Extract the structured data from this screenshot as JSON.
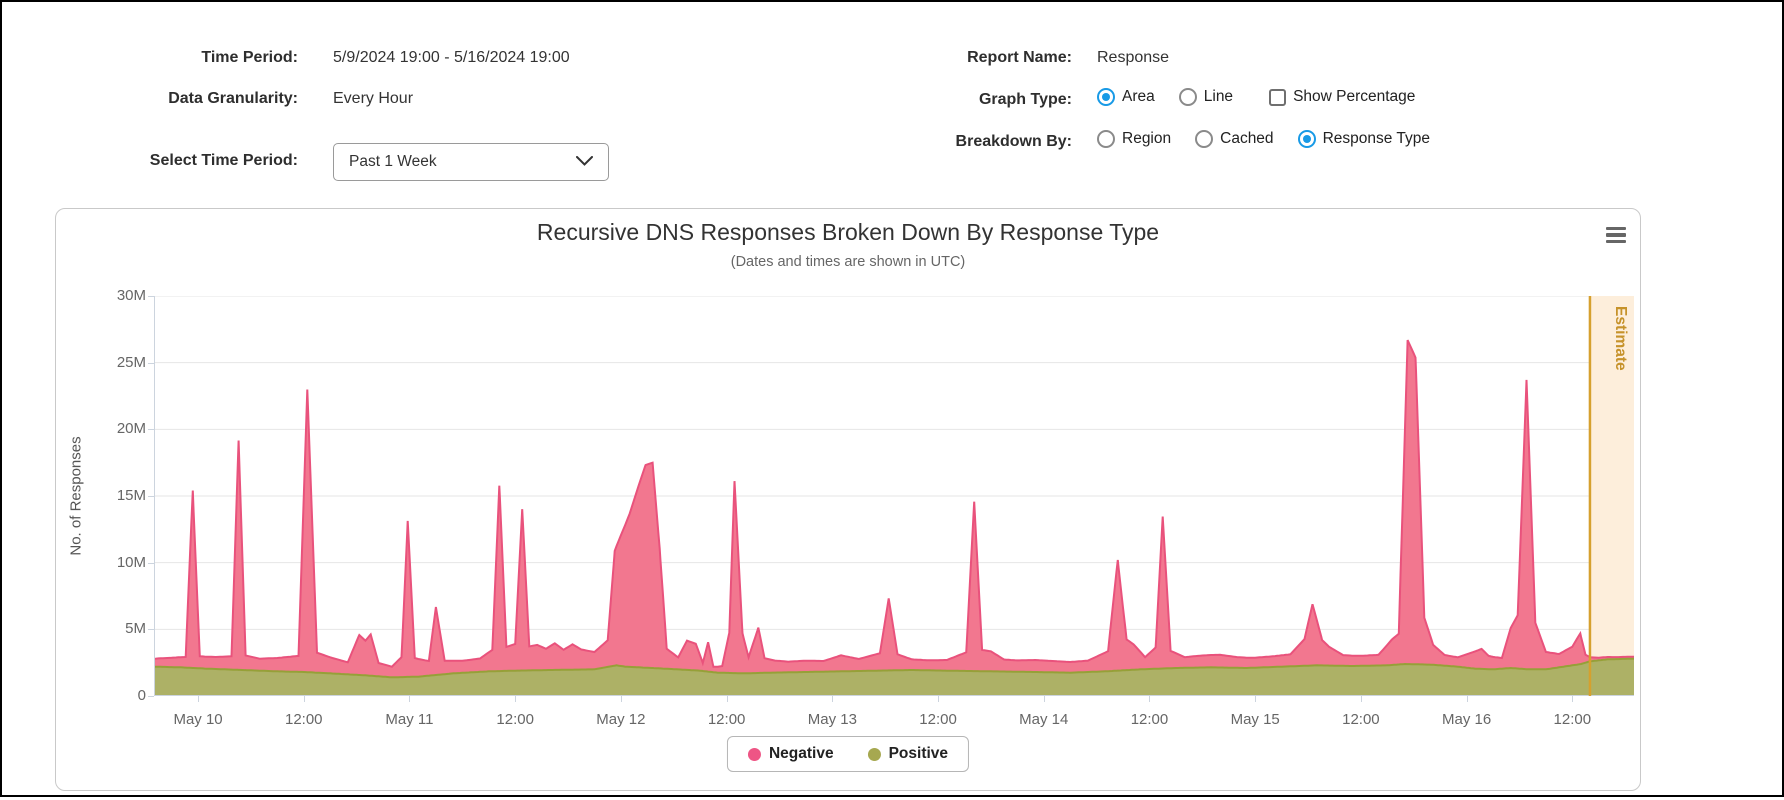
{
  "controls": {
    "time_period_label": "Time Period:",
    "time_period_value": "5/9/2024 19:00 - 5/16/2024 19:00",
    "granularity_label": "Data Granularity:",
    "granularity_value": "Every Hour",
    "select_label": "Select Time Period:",
    "select_value": "Past 1 Week",
    "report_label": "Report Name:",
    "report_value": "Response",
    "graph_type_label": "Graph Type:",
    "graph_options": [
      {
        "label": "Area",
        "selected": true
      },
      {
        "label": "Line",
        "selected": false
      }
    ],
    "show_percentage": {
      "label": "Show Percentage",
      "checked": false
    },
    "breakdown_label": "Breakdown By:",
    "breakdown_options": [
      {
        "label": "Region",
        "selected": false
      },
      {
        "label": "Cached",
        "selected": false
      },
      {
        "label": "Response Type",
        "selected": true
      }
    ]
  },
  "chart": {
    "title": "Recursive DNS Responses Broken Down By Response Type",
    "subtitle": "(Dates and times are shown in UTC)",
    "y_axis_title": "No. of Responses"
  },
  "chart_data": {
    "type": "area",
    "stacked": true,
    "title": "Recursive DNS Responses Broken Down By Response Type",
    "subtitle": "(Dates and times are shown in UTC)",
    "xlabel": "",
    "ylabel": "No. of Responses",
    "x_unit": "hours since 2024-05-09 19:00 UTC",
    "value_unit": "millions of responses",
    "xlim": [
      0,
      168
    ],
    "ylim": [
      0,
      30
    ],
    "grid": true,
    "legend_position": "bottom",
    "y_ticks": [
      [
        0,
        "0"
      ],
      [
        5,
        "5M"
      ],
      [
        10,
        "10M"
      ],
      [
        15,
        "15M"
      ],
      [
        20,
        "20M"
      ],
      [
        25,
        "25M"
      ],
      [
        30,
        "30M"
      ]
    ],
    "x_ticks": [
      [
        5,
        "May 10"
      ],
      [
        17,
        "12:00"
      ],
      [
        29,
        "May 11"
      ],
      [
        41,
        "12:00"
      ],
      [
        53,
        "May 12"
      ],
      [
        65,
        "12:00"
      ],
      [
        77,
        "May 13"
      ],
      [
        89,
        "12:00"
      ],
      [
        101,
        "May 14"
      ],
      [
        113,
        "12:00"
      ],
      [
        125,
        "May 15"
      ],
      [
        137,
        "12:00"
      ],
      [
        149,
        "May 16"
      ],
      [
        161,
        "12:00"
      ]
    ],
    "colors": {
      "grid": "#e6e6e6",
      "axis": "#ccd4de",
      "estimate_band": "#fdeedb",
      "estimate_line": "#d6a02e",
      "estimate_text": "#c6922a"
    },
    "estimate": {
      "label": "Estimate",
      "start_hour": 163,
      "end_hour": 168
    },
    "series": [
      {
        "name": "Negative",
        "fill": "#f2778f",
        "stroke": "#e9527c",
        "legend_color": "#ee5585",
        "points": [
          [
            0,
            0.6
          ],
          [
            2,
            0.7
          ],
          [
            3.6,
            0.8
          ],
          [
            4.4,
            13.3
          ],
          [
            5.2,
            0.9
          ],
          [
            7,
            0.9
          ],
          [
            8.8,
            1.0
          ],
          [
            9.6,
            17.2
          ],
          [
            10.4,
            1.1
          ],
          [
            12,
            0.9
          ],
          [
            14,
            1.0
          ],
          [
            16.4,
            1.2
          ],
          [
            17.4,
            21.2
          ],
          [
            18.5,
            1.5
          ],
          [
            20,
            1.2
          ],
          [
            22,
            0.9
          ],
          [
            23.3,
            3.0
          ],
          [
            24,
            2.6
          ],
          [
            24.6,
            3.1
          ],
          [
            25.5,
            1.0
          ],
          [
            27,
            0.8
          ],
          [
            28.1,
            1.5
          ],
          [
            28.8,
            11.7
          ],
          [
            29.6,
            1.4
          ],
          [
            31.2,
            1.1
          ],
          [
            32,
            5.1
          ],
          [
            33,
            1.0
          ],
          [
            35,
            0.9
          ],
          [
            37,
            1.0
          ],
          [
            38.4,
            1.6
          ],
          [
            39.2,
            13.9
          ],
          [
            40,
            1.8
          ],
          [
            41,
            2.0
          ],
          [
            41.8,
            12.1
          ],
          [
            42.6,
            1.8
          ],
          [
            43.5,
            1.9
          ],
          [
            44.5,
            1.6
          ],
          [
            45.5,
            2.0
          ],
          [
            46.5,
            1.5
          ],
          [
            47.5,
            1.9
          ],
          [
            48.5,
            1.5
          ],
          [
            50,
            1.3
          ],
          [
            51.5,
            2.0
          ],
          [
            52.3,
            8.6
          ],
          [
            53,
            9.8
          ],
          [
            54,
            11.5
          ],
          [
            55,
            13.6
          ],
          [
            55.8,
            15.2
          ],
          [
            56.6,
            15.4
          ],
          [
            57.4,
            9.0
          ],
          [
            58.2,
            1.5
          ],
          [
            59.5,
            0.9
          ],
          [
            60.5,
            2.2
          ],
          [
            61.5,
            2.0
          ],
          [
            62.3,
            0.6
          ],
          [
            62.9,
            2.2
          ],
          [
            63.5,
            0.4
          ],
          [
            64.5,
            0.5
          ],
          [
            65.3,
            3.0
          ],
          [
            65.9,
            14.4
          ],
          [
            66.8,
            3.0
          ],
          [
            67.5,
            1.2
          ],
          [
            68.6,
            3.4
          ],
          [
            69.3,
            1.1
          ],
          [
            70.5,
            0.9
          ],
          [
            72,
            0.8
          ],
          [
            74,
            0.85
          ],
          [
            76,
            0.8
          ],
          [
            78,
            1.2
          ],
          [
            80,
            0.9
          ],
          [
            82.4,
            1.3
          ],
          [
            83.4,
            5.4
          ],
          [
            84.4,
            1.2
          ],
          [
            86,
            0.8
          ],
          [
            88,
            0.75
          ],
          [
            90,
            0.8
          ],
          [
            92.2,
            1.4
          ],
          [
            93.1,
            12.7
          ],
          [
            94,
            1.6
          ],
          [
            95,
            1.5
          ],
          [
            96.5,
            0.9
          ],
          [
            98,
            0.85
          ],
          [
            100,
            0.9
          ],
          [
            102,
            0.85
          ],
          [
            104,
            0.8
          ],
          [
            106,
            0.85
          ],
          [
            108.3,
            1.5
          ],
          [
            109.4,
            8.3
          ],
          [
            110.4,
            2.3
          ],
          [
            111.2,
            1.9
          ],
          [
            112.5,
            0.9
          ],
          [
            113.7,
            1.6
          ],
          [
            114.5,
            11.4
          ],
          [
            115.4,
            1.3
          ],
          [
            117,
            0.8
          ],
          [
            119,
            0.9
          ],
          [
            121,
            0.95
          ],
          [
            123,
            0.8
          ],
          [
            125,
            0.75
          ],
          [
            127,
            0.8
          ],
          [
            129,
            0.9
          ],
          [
            130.6,
            2.0
          ],
          [
            131.5,
            4.6
          ],
          [
            132.6,
            1.9
          ],
          [
            133.4,
            1.4
          ],
          [
            135,
            0.8
          ],
          [
            137,
            0.75
          ],
          [
            139,
            0.8
          ],
          [
            140.5,
            1.9
          ],
          [
            141.3,
            2.3
          ],
          [
            142.3,
            24.3
          ],
          [
            143.2,
            23.0
          ],
          [
            144.2,
            3.5
          ],
          [
            145.2,
            1.5
          ],
          [
            146.5,
            0.8
          ],
          [
            148,
            0.7
          ],
          [
            150,
            1.3
          ],
          [
            150.7,
            1.5
          ],
          [
            151.5,
            1.0
          ],
          [
            153,
            0.8
          ],
          [
            154,
            3.0
          ],
          [
            154.8,
            4.0
          ],
          [
            155.8,
            21.7
          ],
          [
            156.8,
            3.5
          ],
          [
            158,
            1.3
          ],
          [
            159.5,
            1.0
          ],
          [
            161,
            1.4
          ],
          [
            161.9,
            2.3
          ],
          [
            162.5,
            0.6
          ],
          [
            163,
            0.3
          ],
          [
            164,
            0.2
          ],
          [
            166,
            0.15
          ],
          [
            168,
            0.15
          ]
        ]
      },
      {
        "name": "Positive",
        "fill": "#adb166",
        "stroke": "#96a038",
        "legend_color": "#a6a850",
        "points": [
          [
            0,
            2.2
          ],
          [
            3,
            2.15
          ],
          [
            6,
            2.05
          ],
          [
            10,
            1.95
          ],
          [
            14,
            1.85
          ],
          [
            17,
            1.8
          ],
          [
            20,
            1.7
          ],
          [
            24,
            1.55
          ],
          [
            27,
            1.4
          ],
          [
            30,
            1.45
          ],
          [
            34,
            1.7
          ],
          [
            38,
            1.85
          ],
          [
            41,
            1.9
          ],
          [
            45,
            1.95
          ],
          [
            50,
            2.0
          ],
          [
            52.5,
            2.3
          ],
          [
            53.5,
            2.2
          ],
          [
            58,
            2.05
          ],
          [
            62,
            1.9
          ],
          [
            64,
            1.75
          ],
          [
            67,
            1.7
          ],
          [
            70,
            1.75
          ],
          [
            74,
            1.8
          ],
          [
            78,
            1.85
          ],
          [
            82,
            1.9
          ],
          [
            86,
            1.95
          ],
          [
            90,
            1.9
          ],
          [
            95,
            1.85
          ],
          [
            100,
            1.8
          ],
          [
            104,
            1.75
          ],
          [
            108,
            1.85
          ],
          [
            112,
            2.0
          ],
          [
            116,
            2.1
          ],
          [
            120,
            2.15
          ],
          [
            124,
            2.1
          ],
          [
            128,
            2.2
          ],
          [
            132,
            2.3
          ],
          [
            136,
            2.25
          ],
          [
            140,
            2.3
          ],
          [
            142,
            2.4
          ],
          [
            145,
            2.35
          ],
          [
            148,
            2.2
          ],
          [
            150,
            2.05
          ],
          [
            152,
            2.0
          ],
          [
            154,
            2.1
          ],
          [
            156,
            2.0
          ],
          [
            158,
            2.0
          ],
          [
            160,
            2.2
          ],
          [
            162,
            2.4
          ],
          [
            163,
            2.6
          ],
          [
            165,
            2.75
          ],
          [
            168,
            2.8
          ]
        ]
      }
    ]
  }
}
